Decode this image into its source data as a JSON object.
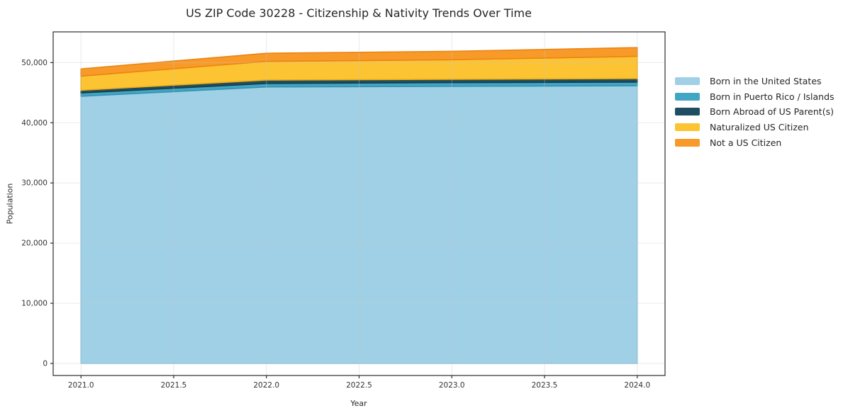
{
  "chart_data": {
    "type": "area",
    "stacked": true,
    "title": "US ZIP Code 30228 - Citizenship & Nativity Trends Over Time",
    "xlabel": "Year",
    "ylabel": "Population",
    "x": [
      2021,
      2022,
      2023,
      2024
    ],
    "series": [
      {
        "name": "Born in the United States",
        "color": "#9fd0e6",
        "edge": "#8cc3dd",
        "values": [
          44400,
          45950,
          46050,
          46150
        ]
      },
      {
        "name": "Born in Puerto Rico / Islands",
        "color": "#41a6c4",
        "edge": "#3692ae",
        "values": [
          550,
          580,
          620,
          600
        ]
      },
      {
        "name": "Born Abroad of US Parent(s)",
        "color": "#1f4e60",
        "edge": "#183d4c",
        "values": [
          450,
          570,
          550,
          590
        ]
      },
      {
        "name": "Naturalized US Citizen",
        "color": "#fcc333",
        "edge": "#eeae15",
        "values": [
          2350,
          3100,
          3250,
          3700
        ]
      },
      {
        "name": "Not a US Citizen",
        "color": "#f89a29",
        "edge": "#ec8413",
        "values": [
          1200,
          1350,
          1400,
          1450
        ]
      }
    ],
    "xlim": [
      2020.85,
      2024.15
    ],
    "ylim": [
      -2000,
      55100
    ],
    "xticks": {
      "values": [
        2021.0,
        2021.5,
        2022.0,
        2022.5,
        2023.0,
        2023.5,
        2024.0
      ],
      "labels": [
        "2021.0",
        "2021.5",
        "2022.0",
        "2022.5",
        "2023.0",
        "2023.5",
        "2024.0"
      ]
    },
    "yticks": {
      "values": [
        0,
        10000,
        20000,
        30000,
        40000,
        50000
      ],
      "labels": [
        "0",
        "10,000",
        "20,000",
        "30,000",
        "40,000",
        "50,000"
      ]
    },
    "grid": true,
    "legend_position": "right"
  }
}
